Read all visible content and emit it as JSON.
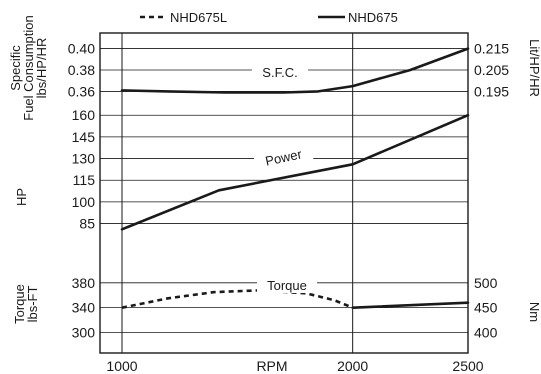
{
  "legend": [
    {
      "label": "NHD675L",
      "style": "dashed"
    },
    {
      "label": "NHD675",
      "style": "solid"
    }
  ],
  "chart_data": {
    "type": "line",
    "x_axis": {
      "label": "RPM",
      "range": [
        1000,
        2500
      ],
      "ticks": [
        1000,
        2000,
        2500
      ],
      "vertical_gridlines": [
        1000,
        2000
      ]
    },
    "panels": [
      {
        "id": "sfc",
        "annotation": "S.F.C.",
        "left_axis": {
          "label_lines": [
            "Specific",
            "Fuel Consumption",
            "lbs/HP/HR"
          ],
          "ticks": [
            "0.40",
            "0.38",
            "0.36"
          ],
          "tick_values": [
            0.4,
            0.38,
            0.36
          ],
          "range": [
            0.352,
            0.408
          ]
        },
        "right_axis": {
          "label": "Lit/HP/HR",
          "ticks": [
            "0.215",
            "0.205",
            "0.195"
          ]
        },
        "series": [
          {
            "legend": "NHD675",
            "style": "solid",
            "x": [
              1000,
              1200,
              1450,
              1700,
              1850,
              2000,
              2250,
              2500
            ],
            "y": [
              0.361,
              0.36,
              0.359,
              0.359,
              0.36,
              0.365,
              0.38,
              0.4
            ]
          }
        ]
      },
      {
        "id": "power",
        "annotation": "Power",
        "left_axis": {
          "label_lines": [
            "HP"
          ],
          "ticks": [
            "160",
            "145",
            "130",
            "115",
            "100",
            "85"
          ],
          "tick_values": [
            160,
            145,
            130,
            115,
            100,
            85
          ],
          "range": [
            75,
            165
          ]
        },
        "right_axis": {
          "label": "",
          "ticks": []
        },
        "series": [
          {
            "legend": "NHD675",
            "style": "solid",
            "x": [
              1000,
              1420,
              2000,
              2500
            ],
            "y": [
              81,
              108,
              126,
              160
            ]
          }
        ]
      },
      {
        "id": "torque",
        "annotation": "Torque",
        "left_axis": {
          "label_lines": [
            "Torque",
            "lbs-FT"
          ],
          "ticks": [
            "380",
            "340",
            "300"
          ],
          "tick_values": [
            380,
            340,
            300
          ],
          "range": [
            275,
            420
          ]
        },
        "right_axis": {
          "label": "Nm",
          "ticks": [
            "500",
            "450",
            "400"
          ]
        },
        "series": [
          {
            "legend": "NHD675L",
            "style": "dashed",
            "x": [
              1000,
              1200,
              1400,
              1600,
              1800,
              1920,
              2000
            ],
            "y": [
              340,
              355,
              365,
              368,
              363,
              352,
              340
            ]
          },
          {
            "legend": "NHD675",
            "style": "solid",
            "x": [
              2000,
              2500
            ],
            "y": [
              340,
              348
            ]
          }
        ]
      }
    ],
    "grid": true,
    "legend_position": "top"
  }
}
